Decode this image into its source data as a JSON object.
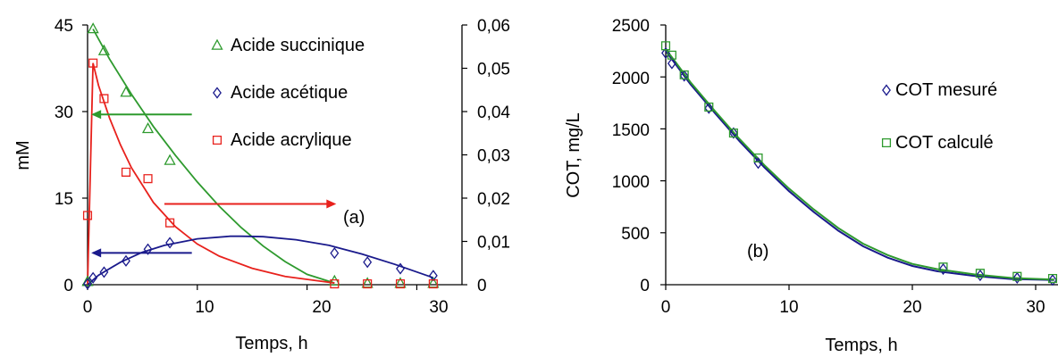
{
  "chart_data": [
    {
      "panel_label": "(a)",
      "type": "scatter",
      "xlabel": "Temps, h",
      "ylabel": "mM",
      "xlim": [
        0,
        32
      ],
      "ylim": [
        0,
        45
      ],
      "y2lim": [
        0,
        0.06
      ],
      "xticks": [
        0,
        10,
        20,
        30
      ],
      "yticks": [
        0,
        15,
        30,
        45
      ],
      "y2ticks": [
        "0",
        "0,01",
        "0,02",
        "0,03",
        "0,04",
        "0,05",
        "0,06"
      ],
      "y2tick_values": [
        0,
        0.01,
        0.02,
        0.03,
        0.04,
        0.05,
        0.06
      ],
      "grid": false,
      "legend_position": "top-right",
      "series": [
        {
          "name": "Acide succinique",
          "axis": "left",
          "marker": "triangle",
          "color": "#2e9a2e",
          "x": [
            0,
            0.5,
            1.5,
            3.5,
            5.5,
            7.5,
            22.5,
            25.5,
            28.5,
            31.5
          ],
          "y": [
            0.5,
            44.3,
            40.5,
            33.3,
            27.0,
            21.5,
            0.6,
            0.2,
            0.2,
            0.2
          ]
        },
        {
          "name": "Acide acétique",
          "axis": "right",
          "marker": "diamond",
          "color": "#1a1a8c",
          "x": [
            0,
            0.5,
            1.5,
            3.5,
            5.5,
            7.5,
            22.5,
            25.5,
            28.5,
            31.5
          ],
          "y": [
            0.0002,
            0.0016,
            0.0029,
            0.0055,
            0.0082,
            0.0097,
            0.0073,
            0.0052,
            0.0037,
            0.0021
          ]
        },
        {
          "name": "Acide acrylique",
          "axis": "right",
          "marker": "square",
          "color": "#e8211c",
          "x": [
            0,
            0.5,
            1.5,
            3.5,
            5.5,
            7.5,
            22.5,
            25.5,
            28.5,
            31.5
          ],
          "y": [
            0.016,
            0.0512,
            0.043,
            0.026,
            0.0245,
            0.0143,
            0.0002,
            0.0002,
            0.0002,
            0.0002
          ]
        }
      ],
      "curves": [
        {
          "color": "#2e9a2e",
          "axis": "left",
          "x": [
            0.5,
            2,
            4,
            6,
            8,
            10,
            12,
            14,
            16,
            18,
            20,
            22.5
          ],
          "y": [
            44.3,
            39.1,
            33.0,
            27.4,
            22.4,
            17.8,
            13.6,
            9.9,
            6.7,
            4.0,
            1.8,
            0.3
          ]
        },
        {
          "color": "#e8211c",
          "axis": "right",
          "x": [
            0,
            0.5,
            1,
            2,
            3,
            4,
            6,
            8,
            10,
            12,
            15,
            18,
            22.5
          ],
          "y": [
            0,
            0.0512,
            0.046,
            0.0385,
            0.0323,
            0.027,
            0.019,
            0.0134,
            0.0094,
            0.0066,
            0.0038,
            0.0019,
            0.0004
          ]
        },
        {
          "color": "#1a1a8c",
          "axis": "right",
          "x": [
            0,
            1,
            3,
            5,
            7,
            10,
            13,
            14,
            16,
            19,
            22,
            25,
            28,
            31.5
          ],
          "y": [
            0,
            0.0022,
            0.0052,
            0.0075,
            0.0091,
            0.0106,
            0.0112,
            0.0112,
            0.0111,
            0.0104,
            0.0091,
            0.0071,
            0.0047,
            0.0016
          ]
        }
      ],
      "arrows": [
        {
          "color": "#2e9a2e",
          "direction": "left",
          "x": [
            9.5,
            0.5
          ],
          "y": 29.5,
          "axis": "left"
        },
        {
          "color": "#1a1a8c",
          "direction": "left",
          "x": [
            9.5,
            0.5
          ],
          "y": 5.5,
          "axis": "left"
        },
        {
          "color": "#e8211c",
          "direction": "right",
          "x": [
            7,
            22.5
          ],
          "y": 14,
          "axis": "left"
        }
      ]
    },
    {
      "panel_label": "(b)",
      "type": "scatter",
      "xlabel": "Temps, h",
      "ylabel": "COT, mg/L",
      "xlim": [
        0,
        32
      ],
      "ylim": [
        0,
        2500
      ],
      "xticks": [
        0,
        10,
        20,
        30
      ],
      "yticks": [
        0,
        500,
        1000,
        1500,
        2000,
        2500
      ],
      "grid": false,
      "legend_position": "top-right",
      "series": [
        {
          "name": "COT mesuré",
          "marker": "diamond",
          "color": "#1a1a8c",
          "x": [
            0,
            0.5,
            1.5,
            3.5,
            5.5,
            7.5,
            22.5,
            25.5,
            28.5,
            31.5
          ],
          "y": [
            2230,
            2130,
            2010,
            1700,
            1460,
            1170,
            150,
            90,
            65,
            45
          ]
        },
        {
          "name": "COT calculé",
          "marker": "square",
          "color": "#2e9a2e",
          "x": [
            0,
            0.5,
            1.5,
            3.5,
            5.5,
            7.5,
            22.5,
            25.5,
            28.5,
            31.5
          ],
          "y": [
            2300,
            2210,
            2020,
            1710,
            1460,
            1220,
            170,
            110,
            80,
            60
          ]
        }
      ],
      "curves": [
        {
          "color": "#1a1a8c",
          "x": [
            0,
            1,
            2,
            4,
            6,
            8,
            10,
            12,
            14,
            16,
            18,
            20,
            22,
            25,
            28,
            31.5
          ],
          "y": [
            2250,
            2090,
            1930,
            1650,
            1380,
            1130,
            900,
            700,
            520,
            370,
            260,
            180,
            130,
            85,
            55,
            45
          ]
        },
        {
          "color": "#2e9a2e",
          "x": [
            0,
            1,
            2,
            4,
            6,
            8,
            10,
            12,
            14,
            16,
            18,
            20,
            22,
            25,
            28,
            31.5
          ],
          "y": [
            2270,
            2110,
            1950,
            1670,
            1400,
            1150,
            925,
            725,
            545,
            395,
            285,
            200,
            150,
            100,
            65,
            50
          ]
        }
      ]
    }
  ]
}
